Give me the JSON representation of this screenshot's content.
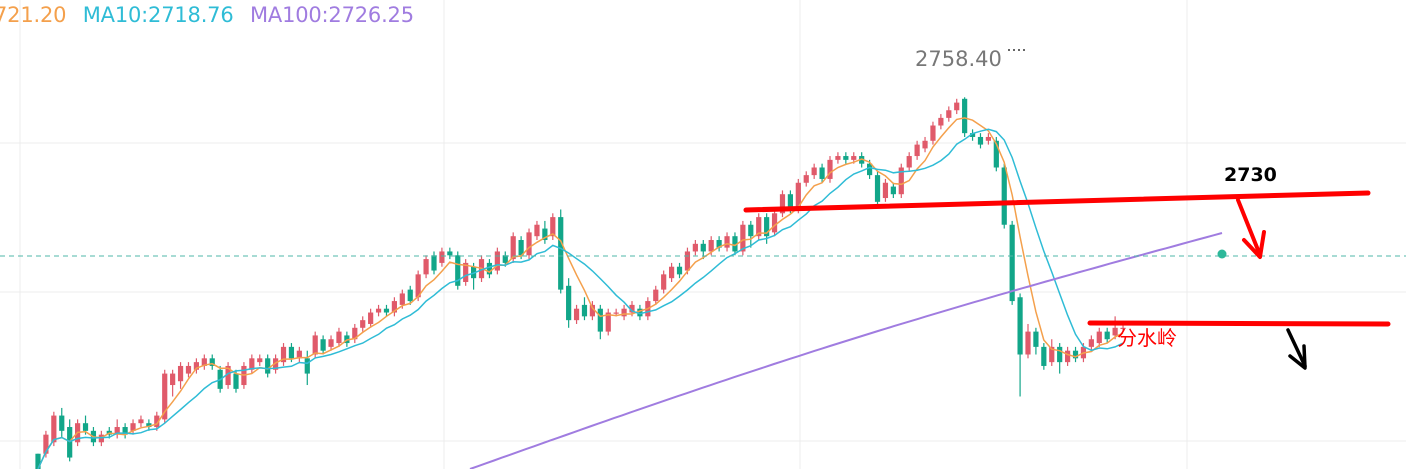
{
  "legend": {
    "ma5": "721.20",
    "ma10": "MA10:2718.76",
    "ma100": "MA100:2726.25"
  },
  "colors": {
    "up": "#e05a6a",
    "down": "#12a689",
    "ma5": "#f4a04c",
    "ma10": "#2fbcd6",
    "ma100": "#a07ce0",
    "annotation": "#ff0000",
    "arrow_black": "#000000",
    "grid": "#ececec",
    "dashed": "#4fb7a8"
  },
  "chart_data": {
    "type": "candlestick",
    "title": "",
    "xlabel": "",
    "ylabel": "",
    "ylim": [
      2661,
      2770
    ],
    "grid": true,
    "series": [
      {
        "name": "MA10:2718.76",
        "values": []
      },
      {
        "name": "MA100:2726.25",
        "values": []
      }
    ],
    "candles": [
      [
        2665,
        2661,
        2665,
        2661
      ],
      [
        2665,
        2670,
        2671,
        2664
      ],
      [
        2668,
        2675,
        2676,
        2667
      ],
      [
        2675,
        2671,
        2677,
        2669
      ],
      [
        2672,
        2664,
        2674,
        2663
      ],
      [
        2668,
        2673,
        2674,
        2667
      ],
      [
        2673,
        2671,
        2675,
        2670
      ],
      [
        2671,
        2668,
        2672,
        2667
      ],
      [
        2668,
        2670,
        2671,
        2667
      ],
      [
        2671,
        2670,
        2672,
        2669
      ],
      [
        2670,
        2672,
        2674,
        2669
      ],
      [
        2672,
        2670,
        2673,
        2669
      ],
      [
        2671,
        2673,
        2674,
        2670
      ],
      [
        2673,
        2674,
        2675,
        2672
      ],
      [
        2673,
        2672,
        2674,
        2671
      ],
      [
        2672,
        2675,
        2676,
        2671
      ],
      [
        2674,
        2686,
        2687,
        2673
      ],
      [
        2683,
        2686,
        2687,
        2680
      ],
      [
        2684,
        2688,
        2689,
        2682
      ],
      [
        2686,
        2688,
        2689,
        2685
      ],
      [
        2687,
        2689,
        2690,
        2686
      ],
      [
        2688,
        2690,
        2691,
        2687
      ],
      [
        2690,
        2688,
        2691,
        2687
      ],
      [
        2687,
        2682,
        2688,
        2681
      ],
      [
        2683,
        2688,
        2689,
        2682
      ],
      [
        2686,
        2682,
        2687,
        2681
      ],
      [
        2683,
        2688,
        2689,
        2682
      ],
      [
        2687,
        2690,
        2691,
        2686
      ],
      [
        2689,
        2690,
        2691,
        2688
      ],
      [
        2690,
        2686,
        2691,
        2685
      ],
      [
        2687,
        2690,
        2691,
        2686
      ],
      [
        2689,
        2693,
        2694,
        2688
      ],
      [
        2693,
        2690,
        2694,
        2689
      ],
      [
        2690,
        2692,
        2693,
        2689
      ],
      [
        2690,
        2686,
        2692,
        2683
      ],
      [
        2691,
        2696,
        2697,
        2690
      ],
      [
        2695,
        2692,
        2696,
        2691
      ],
      [
        2693,
        2695,
        2696,
        2692
      ],
      [
        2694,
        2697,
        2698,
        2693
      ],
      [
        2696,
        2694,
        2697,
        2693
      ],
      [
        2695,
        2698,
        2699,
        2694
      ],
      [
        2698,
        2700,
        2701,
        2697
      ],
      [
        2699,
        2702,
        2703,
        2698
      ],
      [
        2702,
        2703,
        2704,
        2701
      ],
      [
        2703,
        2702,
        2704,
        2701
      ],
      [
        2702,
        2705,
        2706,
        2701
      ],
      [
        2704,
        2707,
        2708,
        2703
      ],
      [
        2708,
        2705,
        2709,
        2704
      ],
      [
        2706,
        2712,
        2713,
        2705
      ],
      [
        2712,
        2716,
        2717,
        2711
      ],
      [
        2717,
        2713,
        2718,
        2712
      ],
      [
        2715,
        2718,
        2719,
        2714
      ],
      [
        2718,
        2717,
        2719,
        2716
      ],
      [
        2717,
        2709,
        2718,
        2708
      ],
      [
        2710,
        2715,
        2716,
        2709
      ],
      [
        2714,
        2711,
        2715,
        2708
      ],
      [
        2711,
        2716,
        2717,
        2710
      ],
      [
        2715,
        2712,
        2716,
        2711
      ],
      [
        2713,
        2718,
        2719,
        2712
      ],
      [
        2717,
        2715,
        2718,
        2714
      ],
      [
        2716,
        2722,
        2723,
        2715
      ],
      [
        2721,
        2717,
        2722,
        2716
      ],
      [
        2717,
        2723,
        2724,
        2716
      ],
      [
        2722,
        2725,
        2726,
        2721
      ],
      [
        2724,
        2721,
        2726,
        2720
      ],
      [
        2722,
        2727,
        2728,
        2721
      ],
      [
        2727,
        2708,
        2729,
        2707
      ],
      [
        2709,
        2700,
        2711,
        2698
      ],
      [
        2700,
        2703,
        2704,
        2699
      ],
      [
        2704,
        2701,
        2706,
        2700
      ],
      [
        2701,
        2704,
        2705,
        2700
      ],
      [
        2703,
        2697,
        2704,
        2695
      ],
      [
        2697,
        2702,
        2703,
        2696
      ],
      [
        2702,
        2702,
        2703,
        2701
      ],
      [
        2701,
        2703,
        2704,
        2700
      ],
      [
        2702,
        2704,
        2705,
        2701
      ],
      [
        2703,
        2701,
        2704,
        2700
      ],
      [
        2701,
        2705,
        2706,
        2700
      ],
      [
        2705,
        2708,
        2709,
        2704
      ],
      [
        2708,
        2712,
        2713,
        2707
      ],
      [
        2711,
        2714,
        2715,
        2710
      ],
      [
        2714,
        2712,
        2715,
        2711
      ],
      [
        2713,
        2718,
        2719,
        2712
      ],
      [
        2718,
        2720,
        2721,
        2717
      ],
      [
        2720,
        2718,
        2721,
        2716
      ],
      [
        2718,
        2721,
        2722,
        2717
      ],
      [
        2721,
        2719,
        2722,
        2718
      ],
      [
        2719,
        2722,
        2723,
        2718
      ],
      [
        2722,
        2718,
        2723,
        2717
      ],
      [
        2718,
        2725,
        2726,
        2717
      ],
      [
        2725,
        2722,
        2726,
        2719
      ],
      [
        2722,
        2727,
        2728,
        2721
      ],
      [
        2727,
        2722,
        2728,
        2720
      ],
      [
        2723,
        2728,
        2729,
        2722
      ],
      [
        2728,
        2733,
        2734,
        2727
      ],
      [
        2733,
        2729,
        2734,
        2728
      ],
      [
        2729,
        2736,
        2737,
        2728
      ],
      [
        2736,
        2738,
        2739,
        2735
      ],
      [
        2738,
        2740,
        2741,
        2737
      ],
      [
        2740,
        2737,
        2741,
        2736
      ],
      [
        2737,
        2742,
        2743,
        2736
      ],
      [
        2742,
        2743,
        2744,
        2741
      ],
      [
        2743,
        2742,
        2744,
        2741
      ],
      [
        2742,
        2743,
        2744,
        2741
      ],
      [
        2743,
        2741,
        2744,
        2740
      ],
      [
        2741,
        2738,
        2742,
        2737
      ],
      [
        2738,
        2731,
        2739,
        2730
      ],
      [
        2732,
        2736,
        2737,
        2731
      ],
      [
        2735,
        2733,
        2736,
        2732
      ],
      [
        2733,
        2740,
        2741,
        2732
      ],
      [
        2740,
        2743,
        2744,
        2739
      ],
      [
        2743,
        2746,
        2747,
        2742
      ],
      [
        2745,
        2747,
        2748,
        2744
      ],
      [
        2747,
        2751,
        2752,
        2746
      ],
      [
        2751,
        2753,
        2754,
        2750
      ],
      [
        2753,
        2755,
        2756,
        2752
      ],
      [
        2755,
        2757,
        2758,
        2754
      ],
      [
        2758,
        2749,
        2758.4,
        2748
      ],
      [
        2749,
        2748,
        2750,
        2747
      ],
      [
        2748,
        2746,
        2749,
        2745
      ],
      [
        2747,
        2748,
        2749,
        2746
      ],
      [
        2747,
        2740,
        2748,
        2739
      ],
      [
        2740,
        2725,
        2741,
        2724
      ],
      [
        2725,
        2705,
        2726,
        2704
      ],
      [
        2706,
        2691,
        2707,
        2680
      ],
      [
        2691,
        2697,
        2699,
        2690
      ],
      [
        2697,
        2693,
        2698,
        2691
      ],
      [
        2693,
        2688,
        2694,
        2687
      ],
      [
        2689,
        2693,
        2695,
        2688
      ],
      [
        2693,
        2689,
        2694,
        2686
      ],
      [
        2689,
        2692,
        2693,
        2688
      ],
      [
        2692,
        2690,
        2693,
        2689
      ],
      [
        2690,
        2693,
        2694,
        2689
      ],
      [
        2693,
        2695,
        2696,
        2692
      ],
      [
        2694,
        2697,
        2698,
        2693
      ],
      [
        2697,
        2695,
        2698,
        2694
      ],
      [
        2696,
        2698,
        2701,
        2695
      ],
      [
        2698,
        2698,
        2699,
        2697
      ]
    ],
    "annotations": [
      {
        "text": "2758.40"
      },
      {
        "text": "2730"
      },
      {
        "text": "分水岭"
      }
    ]
  }
}
